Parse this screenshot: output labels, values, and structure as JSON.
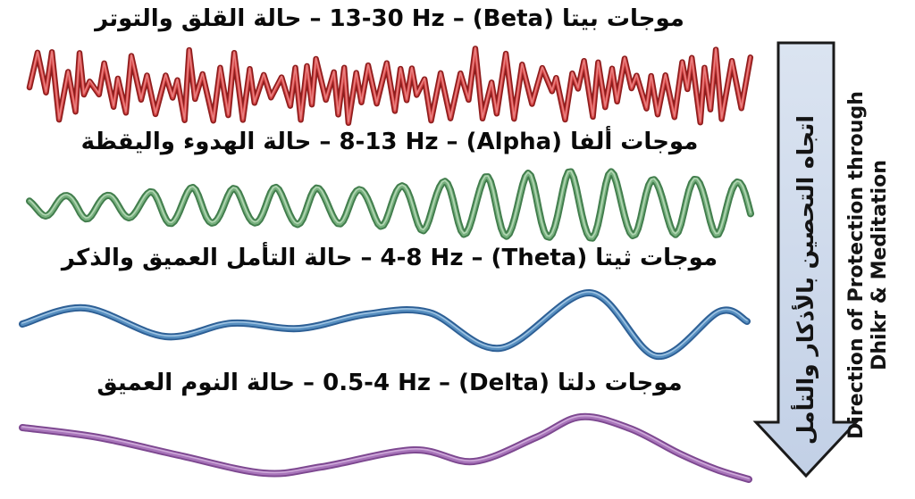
{
  "page": {
    "background": "#ffffff",
    "text_color": "#0a0a0a"
  },
  "waves": [
    {
      "id": "beta",
      "band": "Beta",
      "freq": "13-30 Hz",
      "title": "موجات بيتا (Beta) – 13-30 Hz – حالة القلق والتوتر",
      "colors": {
        "outline": "#8e1d1d",
        "core": "#d64545",
        "highlight": "#ee8f8f"
      }
    },
    {
      "id": "alpha",
      "band": "Alpha",
      "freq": "8-13 Hz",
      "title": "موجات ألفا (Alpha) – 8-13 Hz – حالة الهدوء واليقظة",
      "colors": {
        "outline": "#417d4c",
        "core": "#77b07e",
        "highlight": "#c0e0c0"
      }
    },
    {
      "id": "theta",
      "band": "Theta",
      "freq": "4-8 Hz",
      "title": "موجات ثيتا (Theta) – 4-8 Hz – حالة التأمل العميق والذكر",
      "colors": {
        "outline": "#2d5f95",
        "core": "#578fc0",
        "highlight": "#b0d0ea"
      }
    },
    {
      "id": "delta",
      "band": "Delta",
      "freq": "0.5-4 Hz",
      "title": "موجات دلتا (Delta) – 0.5-4 Hz – حالة النوم العميق",
      "colors": {
        "outline": "#7d4890",
        "core": "#a875ba",
        "highlight": "#d8b8e2"
      }
    }
  ],
  "arrow": {
    "fill_top": "#dbe4f1",
    "fill_bottom": "#c2d0e6",
    "stroke": "#1a1a1a",
    "label_ar": "اتجاه التحصين بالأذكار والتأمل",
    "label_en_line1": "Direction of Protection through",
    "label_en_line2": "Dhikr & Meditation"
  }
}
